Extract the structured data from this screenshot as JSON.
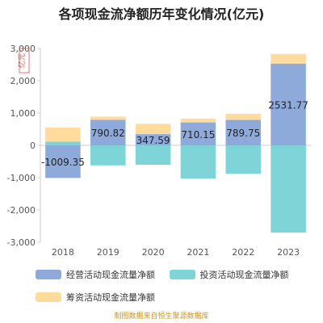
{
  "title": "各项现金流净额历年变化情况(亿元)",
  "source": "制图数据来自恒生聚源数据库",
  "colors": {
    "operating": "#8eaadb",
    "investing": "#7fd4d8",
    "financing": "#ffdb9e",
    "axis": "#cccccc",
    "text": "#555555",
    "unit": "#e05050"
  },
  "chart_data": {
    "type": "bar",
    "stacked": true,
    "title": "各项现金流净额历年变化情况(亿元)",
    "unit_label": "亿元",
    "categories": [
      "2018",
      "2019",
      "2020",
      "2021",
      "2022",
      "2023"
    ],
    "ylim": [
      -3000,
      3000
    ],
    "yticks": [
      -3000,
      -2000,
      -1000,
      0,
      1000,
      2000,
      3000
    ],
    "ytick_labels": [
      "-3,000",
      "-2,000",
      "-1,000",
      "0",
      "1,000",
      "2,000",
      "3,000"
    ],
    "grid": false,
    "legend_position": "bottom",
    "series": [
      {
        "name": "经营活动现金流量净额",
        "color_key": "operating",
        "values": [
          -1009.35,
          790.82,
          347.59,
          710.15,
          789.75,
          2531.77
        ]
      },
      {
        "name": "投资活动现金流量净额",
        "color_key": "investing",
        "values": [
          120,
          -620,
          -600,
          -1030,
          -880,
          -2700
        ]
      },
      {
        "name": "筹资活动现金流量净额",
        "color_key": "financing",
        "values": [
          430,
          100,
          320,
          120,
          190,
          300
        ]
      }
    ],
    "data_labels": [
      "-1009.35",
      "790.82",
      "347.59",
      "710.15",
      "789.75",
      "2531.77"
    ]
  }
}
